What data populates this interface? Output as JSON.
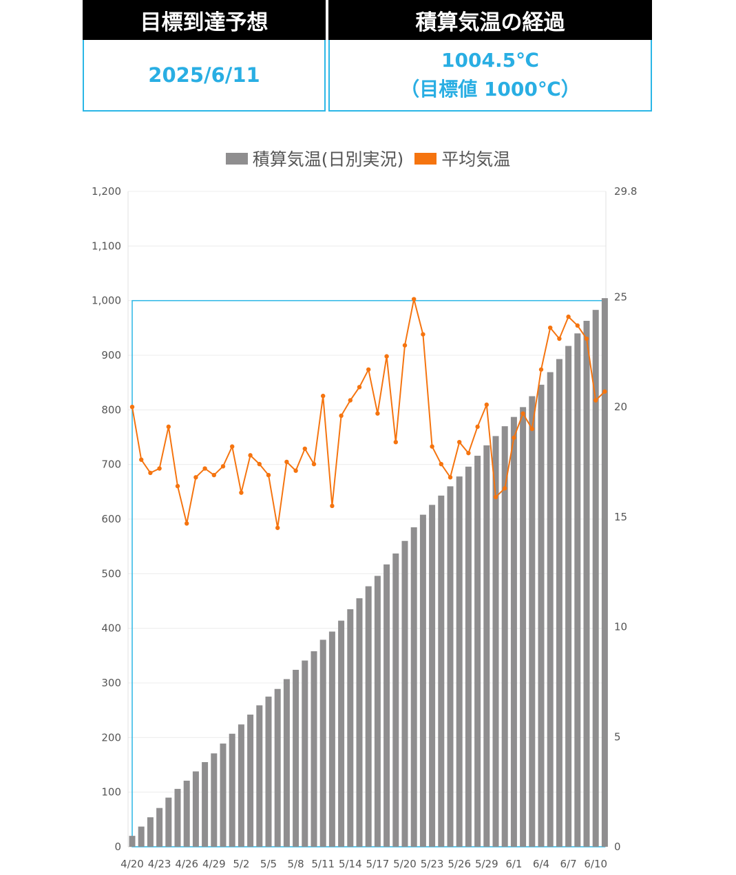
{
  "summary": {
    "left": {
      "title": "目標到達予想",
      "value": "2025/6/11"
    },
    "right": {
      "title": "積算気温の経過",
      "value": "1004.5℃",
      "target": "（目標値 1000℃）"
    }
  },
  "colors": {
    "bar": "#8f8e8f",
    "line": "#f5740f",
    "accent": "#29b6e6",
    "header_bg": "#000000"
  },
  "chart_data": {
    "type": "bar",
    "legend": {
      "position": "top",
      "items": [
        {
          "label": "積算気温(日別実況)",
          "color": "#8f8e8f"
        },
        {
          "label": "平均気温",
          "color": "#f5740f"
        }
      ]
    },
    "categories": [
      "4/20",
      "4/21",
      "4/22",
      "4/23",
      "4/24",
      "4/25",
      "4/26",
      "4/27",
      "4/28",
      "4/29",
      "4/30",
      "5/1",
      "5/2",
      "5/3",
      "5/4",
      "5/5",
      "5/6",
      "5/7",
      "5/8",
      "5/9",
      "5/10",
      "5/11",
      "5/12",
      "5/13",
      "5/14",
      "5/15",
      "5/16",
      "5/17",
      "5/18",
      "5/19",
      "5/20",
      "5/21",
      "5/22",
      "5/23",
      "5/24",
      "5/25",
      "5/26",
      "5/27",
      "5/28",
      "5/29",
      "5/30",
      "5/31",
      "6/1",
      "6/2",
      "6/3",
      "6/4",
      "6/5",
      "6/6",
      "6/7",
      "6/8",
      "6/9",
      "6/10",
      "6/11"
    ],
    "tick_labels": [
      "4/20",
      "4/23",
      "4/26",
      "4/29",
      "5/2",
      "5/5",
      "5/8",
      "5/11",
      "5/14",
      "5/17",
      "5/20",
      "5/23",
      "5/26",
      "5/29",
      "6/1",
      "6/4",
      "6/7",
      "6/10"
    ],
    "y_left": {
      "min": 0,
      "max": 1200,
      "ticks": [
        "0",
        "100",
        "200",
        "300",
        "400",
        "500",
        "600",
        "700",
        "800",
        "900",
        "1,000",
        "1,100",
        "1,200"
      ]
    },
    "y_right": {
      "min": 0,
      "max": 29.8,
      "ticks": [
        "0",
        "5",
        "10",
        "15",
        "20",
        "25",
        "29.8"
      ]
    },
    "target": {
      "value": 1000,
      "from": "4/20",
      "to": "6/11"
    },
    "grid": true,
    "series": [
      {
        "name": "積算気温(日別実況)",
        "type": "bar",
        "axis": "left",
        "values": [
          20,
          37,
          54,
          71,
          90,
          106,
          121,
          138,
          155,
          171,
          189,
          207,
          224,
          242,
          259,
          275,
          289,
          307,
          324,
          341,
          358,
          379,
          394,
          414,
          435,
          455,
          477,
          496,
          517,
          537,
          560,
          585,
          608,
          626,
          643,
          660,
          678,
          696,
          716,
          735,
          752,
          770,
          787,
          805,
          825,
          846,
          869,
          893,
          917,
          940,
          963,
          983,
          1004.5
        ]
      },
      {
        "name": "平均気温",
        "type": "line",
        "axis": "right",
        "values": [
          20.0,
          17.6,
          17.0,
          17.2,
          19.1,
          16.4,
          14.7,
          16.8,
          17.2,
          16.9,
          17.3,
          18.2,
          16.1,
          17.8,
          17.4,
          16.9,
          14.5,
          17.5,
          17.1,
          18.1,
          17.4,
          20.5,
          15.5,
          19.6,
          20.3,
          20.9,
          21.7,
          19.7,
          22.3,
          18.4,
          22.8,
          24.9,
          23.3,
          18.2,
          17.4,
          16.8,
          18.4,
          17.9,
          19.1,
          20.1,
          15.9,
          16.3,
          18.6,
          19.7,
          19.0,
          21.7,
          23.6,
          23.1,
          24.1,
          23.7,
          23.1,
          20.3,
          20.7
        ]
      }
    ]
  }
}
